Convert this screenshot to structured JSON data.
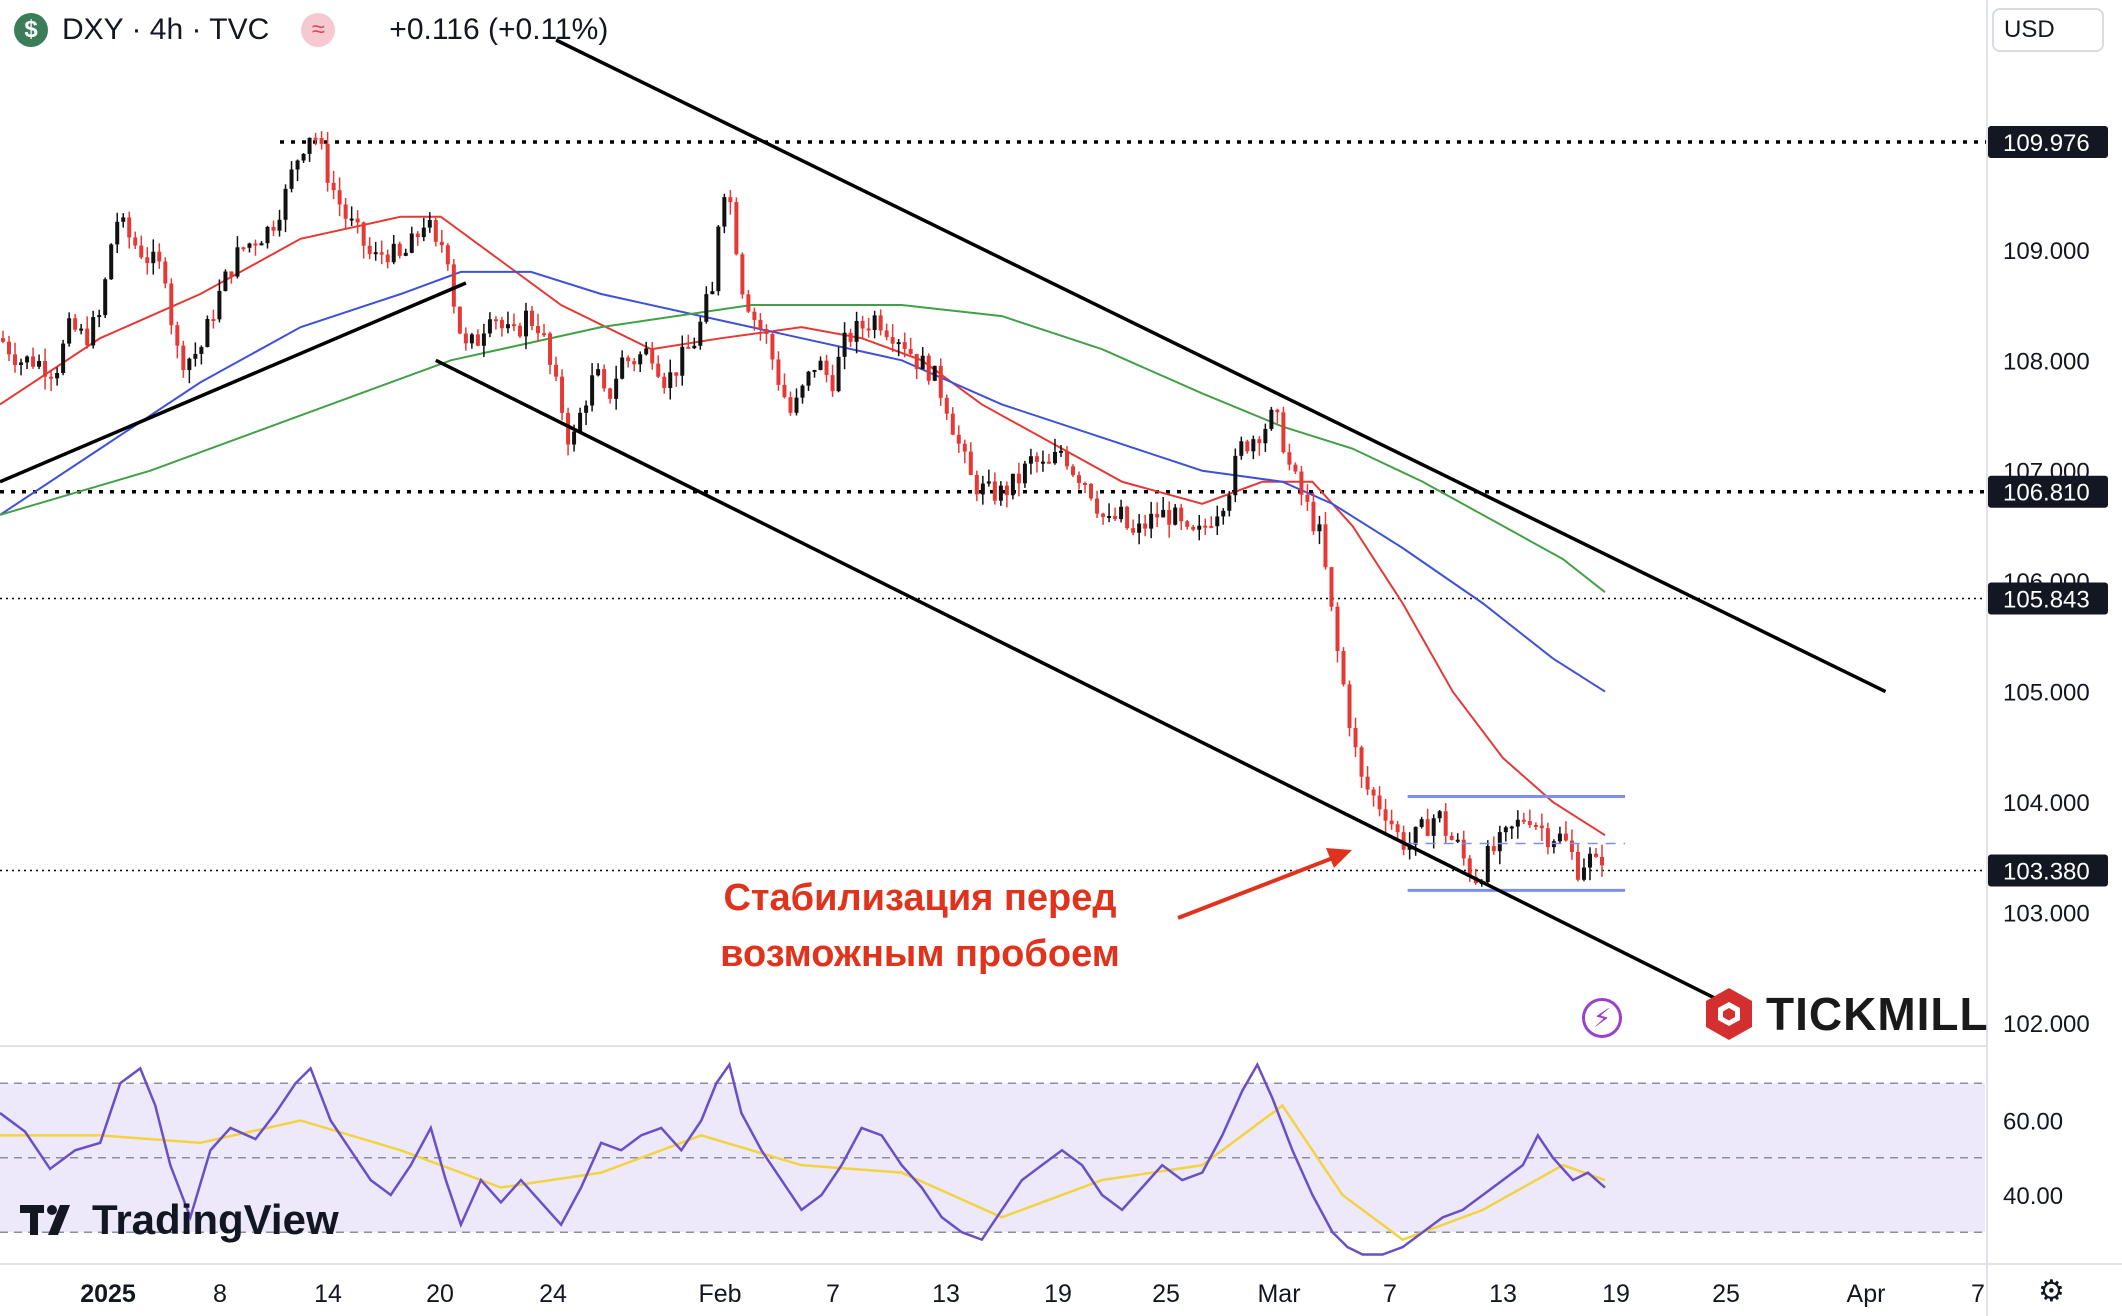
{
  "header": {
    "symbol_icon": "$",
    "title": "DXY · 4h · TVC",
    "indicator_icon": "≈",
    "change": "+0.116 (+0.11%)"
  },
  "currency_selector": "USD",
  "annotation": {
    "line1": "Стабилизация перед",
    "line2": "возможным пробоем",
    "color": "#e0331d"
  },
  "branding": {
    "tradingview": "TradingView",
    "tickmill": "TICKMILL"
  },
  "icons": [
    "dollar-icon",
    "wave-indicator-icon",
    "lightning-icon",
    "settings-gear-icon",
    "tickmill-logo-icon",
    "tradingview-logo-icon"
  ],
  "chart_data": {
    "type": "candlestick",
    "symbol": "DXY",
    "timeframe": "4h",
    "price_axis": {
      "ticks": [
        "109.000",
        "108.000",
        "107.000",
        "106.000",
        "105.000",
        "104.000",
        "103.000",
        "102.000"
      ],
      "range": [
        101.8,
        110.9
      ]
    },
    "price_labels": [
      {
        "label": "109.976",
        "value": 109.976,
        "style": "dotted-bold"
      },
      {
        "label": "106.810",
        "value": 106.81,
        "style": "dotted-bold"
      },
      {
        "label": "105.843",
        "value": 105.843,
        "style": "dotted-thin"
      },
      {
        "label": "103.380",
        "value": 103.38,
        "style": "dotted-thin"
      }
    ],
    "time_axis": {
      "ticks": [
        "2025",
        "8",
        "14",
        "20",
        "24",
        "Feb",
        "7",
        "13",
        "19",
        "25",
        "Mar",
        "7",
        "13",
        "19",
        "25",
        "Apr",
        "7"
      ],
      "bold": [
        "2025"
      ]
    },
    "rsi_axis": {
      "ticks": [
        "60.00",
        "40.00"
      ],
      "levels": [
        70,
        50,
        30
      ]
    },
    "close_path": [
      [
        0,
        108.2
      ],
      [
        20,
        108.0
      ],
      [
        35,
        108.0
      ],
      [
        55,
        107.9
      ],
      [
        70,
        108.3
      ],
      [
        85,
        108.2
      ],
      [
        100,
        108.4
      ],
      [
        115,
        109.3
      ],
      [
        130,
        109.1
      ],
      [
        150,
        108.9
      ],
      [
        165,
        108.8
      ],
      [
        175,
        108.1
      ],
      [
        185,
        108.0
      ],
      [
        200,
        108.1
      ],
      [
        215,
        108.5
      ],
      [
        228,
        108.8
      ],
      [
        240,
        109.0
      ],
      [
        255,
        109.1
      ],
      [
        270,
        109.2
      ],
      [
        285,
        109.5
      ],
      [
        295,
        109.8
      ],
      [
        305,
        110.0
      ],
      [
        312,
        110.1
      ],
      [
        320,
        109.9
      ],
      [
        330,
        109.6
      ],
      [
        345,
        109.3
      ],
      [
        360,
        109.1
      ],
      [
        372,
        108.9
      ],
      [
        385,
        109.0
      ],
      [
        400,
        108.9
      ],
      [
        415,
        109.1
      ],
      [
        425,
        109.3
      ],
      [
        435,
        109.0
      ],
      [
        445,
        109.1
      ],
      [
        455,
        108.4
      ],
      [
        465,
        108.1
      ],
      [
        478,
        108.2
      ],
      [
        490,
        108.5
      ],
      [
        500,
        108.3
      ],
      [
        512,
        108.2
      ],
      [
        525,
        108.4
      ],
      [
        540,
        108.3
      ],
      [
        550,
        107.9
      ],
      [
        560,
        107.6
      ],
      [
        570,
        107.2
      ],
      [
        582,
        107.6
      ],
      [
        595,
        107.9
      ],
      [
        605,
        107.6
      ],
      [
        620,
        108.0
      ],
      [
        632,
        108.0
      ],
      [
        650,
        108.1
      ],
      [
        665,
        107.8
      ],
      [
        680,
        108.0
      ],
      [
        695,
        108.2
      ],
      [
        705,
        108.5
      ],
      [
        712,
        108.6
      ],
      [
        718,
        109.4
      ],
      [
        722,
        109.6
      ],
      [
        730,
        109.4
      ],
      [
        740,
        108.7
      ],
      [
        752,
        108.4
      ],
      [
        765,
        108.2
      ],
      [
        778,
        107.8
      ],
      [
        790,
        107.5
      ],
      [
        800,
        107.7
      ],
      [
        815,
        108.0
      ],
      [
        830,
        107.8
      ],
      [
        845,
        108.2
      ],
      [
        860,
        108.3
      ],
      [
        875,
        108.4
      ],
      [
        885,
        108.3
      ],
      [
        900,
        108.2
      ],
      [
        915,
        108.0
      ],
      [
        930,
        107.9
      ],
      [
        945,
        107.6
      ],
      [
        958,
        107.2
      ],
      [
        970,
        106.9
      ],
      [
        985,
        106.8
      ],
      [
        1000,
        106.8
      ],
      [
        1015,
        106.9
      ],
      [
        1030,
        107.1
      ],
      [
        1045,
        107.0
      ],
      [
        1060,
        107.2
      ],
      [
        1072,
        107.0
      ],
      [
        1085,
        106.9
      ],
      [
        1095,
        106.7
      ],
      [
        1105,
        106.5
      ],
      [
        1118,
        106.6
      ],
      [
        1130,
        106.4
      ],
      [
        1142,
        106.5
      ],
      [
        1155,
        106.6
      ],
      [
        1170,
        106.6
      ],
      [
        1185,
        106.4
      ],
      [
        1195,
        106.4
      ],
      [
        1210,
        106.6
      ],
      [
        1225,
        106.8
      ],
      [
        1238,
        107.2
      ],
      [
        1250,
        107.3
      ],
      [
        1262,
        107.4
      ],
      [
        1272,
        107.5
      ],
      [
        1280,
        107.3
      ],
      [
        1288,
        107.0
      ],
      [
        1298,
        106.8
      ],
      [
        1308,
        106.6
      ],
      [
        1318,
        106.4
      ],
      [
        1326,
        105.9
      ],
      [
        1334,
        105.4
      ],
      [
        1342,
        105.0
      ],
      [
        1350,
        104.6
      ],
      [
        1358,
        104.2
      ],
      [
        1366,
        104.1
      ],
      [
        1375,
        104.0
      ],
      [
        1385,
        103.9
      ],
      [
        1395,
        103.7
      ],
      [
        1405,
        103.6
      ],
      [
        1415,
        103.7
      ],
      [
        1425,
        103.8
      ],
      [
        1435,
        103.9
      ],
      [
        1445,
        103.7
      ],
      [
        1455,
        103.6
      ],
      [
        1465,
        103.4
      ],
      [
        1475,
        103.3
      ],
      [
        1485,
        103.5
      ],
      [
        1495,
        103.6
      ],
      [
        1505,
        103.7
      ],
      [
        1515,
        103.8
      ],
      [
        1525,
        103.9
      ],
      [
        1535,
        103.8
      ],
      [
        1545,
        103.7
      ],
      [
        1555,
        103.7
      ],
      [
        1565,
        103.6
      ],
      [
        1575,
        103.4
      ],
      [
        1585,
        103.5
      ],
      [
        1595,
        103.4
      ],
      [
        1602,
        103.6
      ]
    ],
    "moving_averages": [
      {
        "color": "#e53935",
        "points": [
          [
            0,
            107.6
          ],
          [
            100,
            108.2
          ],
          [
            200,
            108.6
          ],
          [
            300,
            109.1
          ],
          [
            400,
            109.3
          ],
          [
            440,
            109.3
          ],
          [
            500,
            108.9
          ],
          [
            560,
            108.5
          ],
          [
            650,
            108.1
          ],
          [
            720,
            108.2
          ],
          [
            800,
            108.3
          ],
          [
            860,
            108.2
          ],
          [
            920,
            108.0
          ],
          [
            980,
            107.6
          ],
          [
            1060,
            107.2
          ],
          [
            1120,
            106.9
          ],
          [
            1200,
            106.7
          ],
          [
            1260,
            106.9
          ],
          [
            1310,
            106.9
          ],
          [
            1350,
            106.5
          ],
          [
            1400,
            105.8
          ],
          [
            1450,
            105.0
          ],
          [
            1500,
            104.4
          ],
          [
            1550,
            104.0
          ],
          [
            1602,
            103.7
          ]
        ]
      },
      {
        "color": "#3f51d8",
        "points": [
          [
            0,
            106.6
          ],
          [
            100,
            107.2
          ],
          [
            200,
            107.8
          ],
          [
            300,
            108.3
          ],
          [
            400,
            108.6
          ],
          [
            460,
            108.8
          ],
          [
            530,
            108.8
          ],
          [
            600,
            108.6
          ],
          [
            700,
            108.4
          ],
          [
            800,
            108.2
          ],
          [
            900,
            108.0
          ],
          [
            1000,
            107.6
          ],
          [
            1100,
            107.3
          ],
          [
            1200,
            107.0
          ],
          [
            1280,
            106.9
          ],
          [
            1330,
            106.7
          ],
          [
            1400,
            106.3
          ],
          [
            1480,
            105.8
          ],
          [
            1550,
            105.3
          ],
          [
            1602,
            105.0
          ]
        ]
      },
      {
        "color": "#43a047",
        "points": [
          [
            0,
            106.6
          ],
          [
            150,
            107.0
          ],
          [
            300,
            107.5
          ],
          [
            450,
            108.0
          ],
          [
            600,
            108.3
          ],
          [
            750,
            108.5
          ],
          [
            900,
            108.5
          ],
          [
            1000,
            108.4
          ],
          [
            1100,
            108.1
          ],
          [
            1200,
            107.7
          ],
          [
            1280,
            107.4
          ],
          [
            1350,
            107.2
          ],
          [
            1420,
            106.9
          ],
          [
            1500,
            106.5
          ],
          [
            1560,
            106.2
          ],
          [
            1602,
            105.9
          ]
        ]
      }
    ],
    "trendlines": [
      {
        "from": [
          0,
          106.9
        ],
        "to": [
          465,
          108.7
        ]
      },
      {
        "from": [
          555,
          110.9
        ],
        "to": [
          1882,
          105.0
        ]
      },
      {
        "from": [
          435,
          108.0
        ],
        "to": [
          1717,
          102.2
        ]
      }
    ],
    "range_box": {
      "top": 104.05,
      "bottom": 103.2,
      "x_start": 1405,
      "x_end": 1622
    },
    "rsi": {
      "source": "RSI(14) with signal MA",
      "points": [
        [
          0,
          62
        ],
        [
          25,
          57
        ],
        [
          50,
          47
        ],
        [
          75,
          52
        ],
        [
          100,
          54
        ],
        [
          120,
          70
        ],
        [
          140,
          74
        ],
        [
          155,
          64
        ],
        [
          170,
          48
        ],
        [
          190,
          34
        ],
        [
          210,
          52
        ],
        [
          230,
          58
        ],
        [
          255,
          55
        ],
        [
          275,
          62
        ],
        [
          295,
          70
        ],
        [
          310,
          74
        ],
        [
          330,
          60
        ],
        [
          350,
          52
        ],
        [
          370,
          44
        ],
        [
          390,
          40
        ],
        [
          410,
          48
        ],
        [
          430,
          58
        ],
        [
          445,
          44
        ],
        [
          460,
          32
        ],
        [
          480,
          44
        ],
        [
          500,
          38
        ],
        [
          520,
          44
        ],
        [
          540,
          38
        ],
        [
          560,
          32
        ],
        [
          580,
          42
        ],
        [
          600,
          54
        ],
        [
          620,
          52
        ],
        [
          640,
          56
        ],
        [
          660,
          58
        ],
        [
          680,
          52
        ],
        [
          700,
          60
        ],
        [
          715,
          70
        ],
        [
          728,
          75
        ],
        [
          740,
          62
        ],
        [
          760,
          52
        ],
        [
          780,
          44
        ],
        [
          800,
          36
        ],
        [
          820,
          40
        ],
        [
          840,
          48
        ],
        [
          860,
          58
        ],
        [
          880,
          56
        ],
        [
          900,
          48
        ],
        [
          920,
          42
        ],
        [
          940,
          34
        ],
        [
          960,
          30
        ],
        [
          980,
          28
        ],
        [
          1000,
          36
        ],
        [
          1020,
          44
        ],
        [
          1040,
          48
        ],
        [
          1060,
          52
        ],
        [
          1080,
          48
        ],
        [
          1100,
          40
        ],
        [
          1120,
          36
        ],
        [
          1140,
          42
        ],
        [
          1160,
          48
        ],
        [
          1180,
          44
        ],
        [
          1200,
          46
        ],
        [
          1220,
          56
        ],
        [
          1240,
          68
        ],
        [
          1255,
          75
        ],
        [
          1270,
          66
        ],
        [
          1290,
          52
        ],
        [
          1310,
          40
        ],
        [
          1330,
          30
        ],
        [
          1345,
          26
        ],
        [
          1360,
          24
        ],
        [
          1380,
          24
        ],
        [
          1400,
          26
        ],
        [
          1420,
          30
        ],
        [
          1440,
          34
        ],
        [
          1460,
          36
        ],
        [
          1480,
          40
        ],
        [
          1500,
          44
        ],
        [
          1520,
          48
        ],
        [
          1535,
          56
        ],
        [
          1550,
          50
        ],
        [
          1570,
          44
        ],
        [
          1585,
          46
        ],
        [
          1602,
          42
        ]
      ],
      "signal": [
        [
          0,
          56
        ],
        [
          100,
          56
        ],
        [
          200,
          54
        ],
        [
          300,
          60
        ],
        [
          400,
          52
        ],
        [
          500,
          42
        ],
        [
          600,
          46
        ],
        [
          700,
          56
        ],
        [
          800,
          48
        ],
        [
          900,
          46
        ],
        [
          1000,
          34
        ],
        [
          1100,
          44
        ],
        [
          1200,
          48
        ],
        [
          1280,
          64
        ],
        [
          1340,
          40
        ],
        [
          1400,
          28
        ],
        [
          1480,
          36
        ],
        [
          1560,
          48
        ],
        [
          1602,
          44
        ]
      ],
      "line_color": "#6a4fc6",
      "signal_color": "#f2d341",
      "band_color": "#ede9fb"
    }
  }
}
